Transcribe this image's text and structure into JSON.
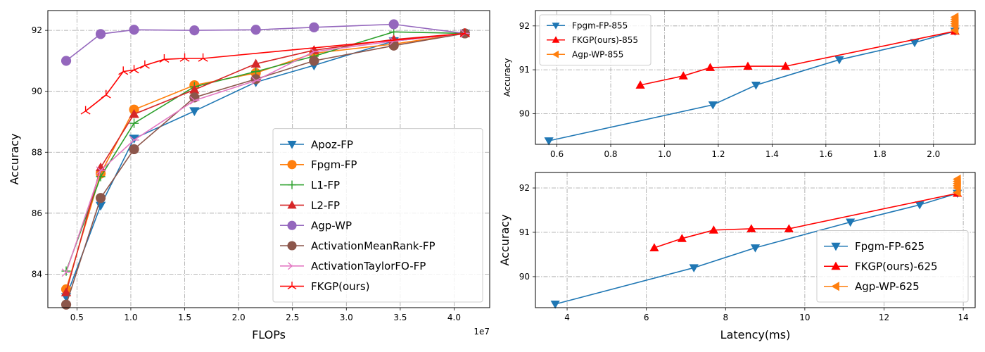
{
  "chart_data": [
    {
      "id": "left",
      "type": "line",
      "xlabel": "FLOPs",
      "ylabel": "Accuracy",
      "x_multiplier_label": "1e7",
      "xlim": [
        0.23,
        4.33
      ],
      "ylim": [
        82.9,
        92.65
      ],
      "xticks": [
        0.5,
        1.0,
        1.5,
        2.0,
        2.5,
        3.0,
        3.5,
        4.0
      ],
      "xticklabels": [
        "0.5",
        "1.0",
        "1.5",
        "2.0",
        "2.5",
        "3.0",
        "3.5",
        "4.0"
      ],
      "yticks": [
        84,
        86,
        88,
        90,
        92
      ],
      "yticklabels": [
        "84",
        "86",
        "88",
        "90",
        "92"
      ],
      "grid": true,
      "legend_location": "lower-right",
      "legend_font": 15,
      "series": [
        {
          "name": "Apoz-FP",
          "color": "#1f77b4",
          "marker": "tri-down",
          "x": [
            0.4,
            0.72,
            1.03,
            1.59,
            2.16,
            2.7,
            3.44,
            4.1
          ],
          "y": [
            83.25,
            86.25,
            88.45,
            89.35,
            90.3,
            90.85,
            91.65,
            91.9
          ]
        },
        {
          "name": "Fpgm-FP",
          "color": "#ff7f0e",
          "marker": "circle",
          "x": [
            0.4,
            0.72,
            1.03,
            1.59,
            2.16,
            2.7,
            3.44,
            4.1
          ],
          "y": [
            83.5,
            87.3,
            89.4,
            90.2,
            90.6,
            91.25,
            91.55,
            91.9
          ]
        },
        {
          "name": "L1-FP",
          "color": "#2ca02c",
          "marker": "plus",
          "x": [
            0.4,
            0.72,
            1.03,
            1.59,
            2.16,
            2.7,
            3.44,
            4.1
          ],
          "y": [
            84.1,
            87.2,
            88.95,
            90.15,
            90.65,
            91.15,
            91.95,
            91.9
          ]
        },
        {
          "name": "L2-FP",
          "color": "#d62728",
          "marker": "tri-up",
          "x": [
            0.4,
            0.72,
            1.03,
            1.59,
            2.16,
            2.7,
            3.44,
            4.1
          ],
          "y": [
            83.4,
            87.5,
            89.25,
            90.05,
            90.9,
            91.35,
            91.7,
            91.9
          ]
        },
        {
          "name": "Agp-WP",
          "color": "#9467bd",
          "marker": "circle",
          "x": [
            0.4,
            0.72,
            1.03,
            1.59,
            2.16,
            2.7,
            3.44,
            4.1
          ],
          "y": [
            91.0,
            91.88,
            92.02,
            92.0,
            92.02,
            92.1,
            92.2,
            91.9
          ]
        },
        {
          "name": "ActivationMeanRank-FP",
          "color": "#8c564b",
          "marker": "circle",
          "x": [
            0.4,
            0.72,
            1.03,
            1.59,
            2.16,
            2.7,
            3.44,
            4.1
          ],
          "y": [
            83.0,
            86.5,
            88.1,
            89.8,
            90.4,
            91.0,
            91.5,
            91.9
          ]
        },
        {
          "name": "ActivationTaylorFO-FP",
          "color": "#e377c2",
          "marker": "tri-right",
          "x": [
            0.4,
            0.72,
            1.03,
            1.59,
            2.16,
            2.7,
            3.44,
            4.1
          ],
          "y": [
            84.05,
            87.4,
            88.4,
            89.7,
            90.35,
            91.3,
            91.65,
            91.9
          ]
        },
        {
          "name": "FKGP(ours)",
          "color": "#ff0000",
          "marker": "thin-tri",
          "x": [
            0.58,
            0.77,
            0.93,
            1.03,
            1.13,
            1.31,
            1.5,
            1.67,
            4.1
          ],
          "y": [
            89.35,
            89.88,
            90.65,
            90.7,
            90.85,
            91.05,
            91.08,
            91.08,
            91.9
          ]
        }
      ]
    },
    {
      "id": "top-right",
      "type": "line",
      "xlabel": "",
      "ylabel": "Accuracy",
      "xlim": [
        0.52,
        2.155
      ],
      "ylim": [
        89.3,
        92.35
      ],
      "xticks": [
        0.6,
        0.8,
        1.0,
        1.2,
        1.4,
        1.6,
        1.8,
        2.0
      ],
      "xticklabels": [
        "0.6",
        "0.8",
        "1.0",
        "1.2",
        "1.4",
        "1.6",
        "1.8",
        "2.0"
      ],
      "yticks": [
        90,
        91,
        92
      ],
      "yticklabels": [
        "90",
        "91",
        "92"
      ],
      "grid": true,
      "legend_location": "upper-left",
      "legend_font": 12,
      "series": [
        {
          "name": "Fpgm-FP-855",
          "color": "#1f77b4",
          "marker": "tri-down",
          "x": [
            0.57,
            1.18,
            1.34,
            1.65,
            1.93,
            2.08
          ],
          "y": [
            89.38,
            90.2,
            90.65,
            91.23,
            91.62,
            91.88
          ]
        },
        {
          "name": "FKGP(ours)-855",
          "color": "#ff0000",
          "marker": "tri-up",
          "x": [
            0.91,
            1.07,
            1.17,
            1.31,
            1.45,
            2.08
          ],
          "y": [
            90.65,
            90.86,
            91.05,
            91.08,
            91.08,
            91.88
          ]
        },
        {
          "name": "Agp-WP-855",
          "color": "#ff7f0e",
          "marker": "tri-left",
          "line": false,
          "x": [
            2.08,
            2.08,
            2.08,
            2.08,
            2.08,
            2.08
          ],
          "y": [
            91.9,
            92.0,
            92.05,
            92.1,
            92.15,
            92.2
          ]
        }
      ]
    },
    {
      "id": "bottom-right",
      "type": "line",
      "xlabel": "Latency(ms)",
      "ylabel": "Accuracy",
      "xlim": [
        3.2,
        14.3
      ],
      "ylim": [
        89.3,
        92.35
      ],
      "xticks": [
        4,
        6,
        8,
        10,
        12,
        14
      ],
      "xticklabels": [
        "4",
        "6",
        "8",
        "10",
        "12",
        "14"
      ],
      "yticks": [
        90,
        91,
        92
      ],
      "yticklabels": [
        "90",
        "91",
        "92"
      ],
      "grid": true,
      "legend_location": "lower-right",
      "legend_font": 15,
      "series": [
        {
          "name": "Fpgm-FP-625",
          "color": "#1f77b4",
          "marker": "tri-down",
          "x": [
            3.7,
            7.2,
            8.75,
            11.15,
            12.9,
            13.85
          ],
          "y": [
            89.38,
            90.2,
            90.65,
            91.23,
            91.62,
            91.88
          ]
        },
        {
          "name": "FKGP(ours)-625",
          "color": "#ff0000",
          "marker": "tri-up",
          "x": [
            6.2,
            6.9,
            7.7,
            8.65,
            9.6,
            13.85
          ],
          "y": [
            90.65,
            90.86,
            91.05,
            91.08,
            91.08,
            91.88
          ]
        },
        {
          "name": "Agp-WP-625",
          "color": "#ff7f0e",
          "marker": "tri-left",
          "line": false,
          "x": [
            13.85,
            13.85,
            13.85,
            13.85,
            13.85,
            13.85
          ],
          "y": [
            91.9,
            92.0,
            92.05,
            92.1,
            92.15,
            92.2
          ]
        }
      ]
    }
  ]
}
